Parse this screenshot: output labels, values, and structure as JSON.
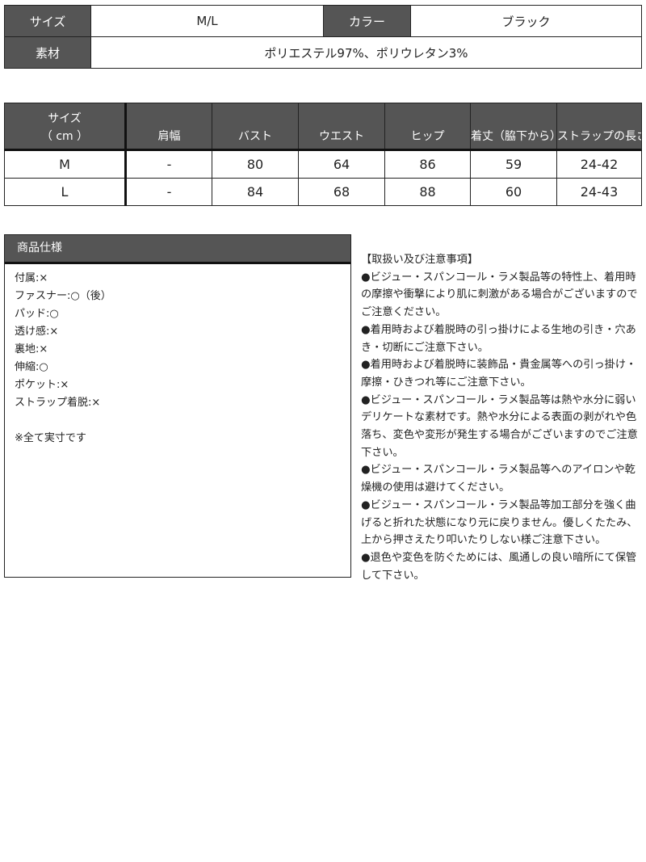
{
  "info": {
    "size_label": "サイズ",
    "size_value": "M/L",
    "color_label": "カラー",
    "color_value": "ブラック",
    "material_label": "素材",
    "material_value": "ポリエステル97%、ポリウレタン3%"
  },
  "size_table": {
    "headers": [
      "サイズ\n（ cm ）",
      "肩幅",
      "バスト",
      "ウエスト",
      "ヒップ",
      "着丈（脇下から）",
      "ストラップの長さ"
    ],
    "rows": [
      [
        "M",
        "-",
        "80",
        "64",
        "86",
        "59",
        "24-42"
      ],
      [
        "L",
        "-",
        "84",
        "68",
        "88",
        "60",
        "24-43"
      ]
    ]
  },
  "spec": {
    "title": "商品仕様",
    "items": [
      "付属:×",
      "ファスナー:○（後）",
      "パッド:○",
      "透け感:×",
      "裏地:×",
      "伸縮:○",
      "ポケット:×",
      "ストラップ着脱:×"
    ],
    "note": "※全て実寸です"
  },
  "notes": {
    "title": "【取扱い及び注意事項】",
    "items": [
      "●ビジュー・スパンコール・ラメ製品等の特性上、着用時の摩擦や衝撃により肌に刺激がある場合がございますのでご注意ください。",
      "●着用時および着脱時の引っ掛けによる生地の引き・穴あき・切断にご注意下さい。",
      "●着用時および着脱時に装飾品・貴金属等への引っ掛け・摩擦・ひきつれ等にご注意下さい。",
      "●ビジュー・スパンコール・ラメ製品等は熱や水分に弱いデリケートな素材です。熱や水分による表面の剥がれや色落ち、変色や変形が発生する場合がございますのでご注意下さい。",
      "●ビジュー・スパンコール・ラメ製品等へのアイロンや乾燥機の使用は避けてください。",
      "●ビジュー・スパンコール・ラメ製品等加工部分を強く曲げると折れた状態になり元に戻りません。優しくたたみ、上から押さえたり叩いたりしない様ご注意下さい。",
      "●退色や変色を防ぐためには、風通しの良い暗所にて保管して下さい。"
    ]
  },
  "colors": {
    "header_bg": "#555555",
    "border": "#222222"
  }
}
